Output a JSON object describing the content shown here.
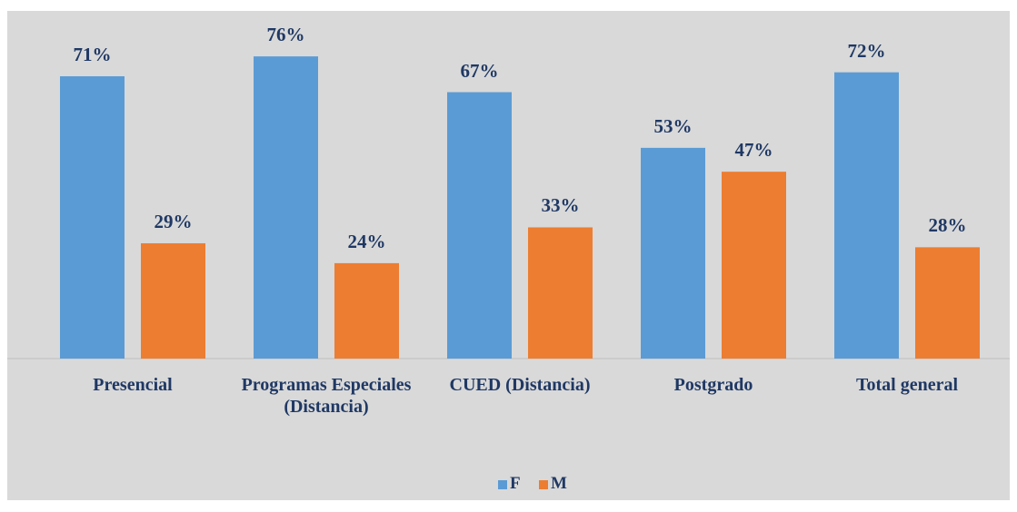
{
  "chart_data": {
    "type": "bar",
    "categories": [
      "Presencial",
      "Programas Especiales (Distancia)",
      "CUED (Distancia)",
      "Postgrado",
      "Total general"
    ],
    "series": [
      {
        "name": "F",
        "color": "#5b9bd5",
        "values": [
          71,
          76,
          67,
          53,
          72
        ],
        "value_labels": [
          "71%",
          "76%",
          "67%",
          "53%",
          "72%"
        ]
      },
      {
        "name": "M",
        "color": "#ed7d31",
        "values": [
          29,
          24,
          33,
          47,
          28
        ],
        "value_labels": [
          "29%",
          "24%",
          "33%",
          "47%",
          "28%"
        ]
      }
    ]
  }
}
